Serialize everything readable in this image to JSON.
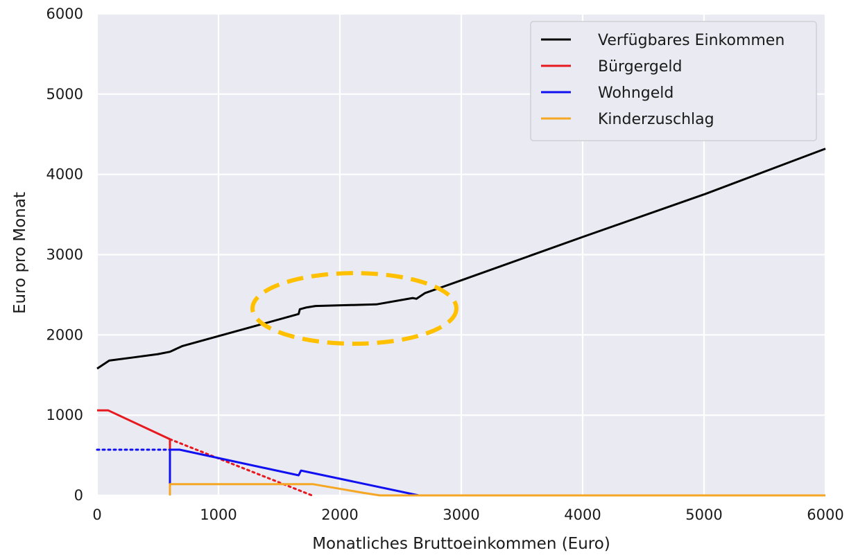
{
  "chart_data": {
    "type": "line",
    "xlabel": "Monatliches Bruttoeinkommen (Euro)",
    "ylabel": "Euro pro Monat",
    "xlim": [
      0,
      6000
    ],
    "ylim": [
      0,
      6000
    ],
    "x_ticks": [
      "0",
      "1000",
      "2000",
      "3000",
      "4000",
      "5000",
      "6000"
    ],
    "y_ticks": [
      "0",
      "1000",
      "2000",
      "3000",
      "4000",
      "5000",
      "6000"
    ],
    "grid": true,
    "legend_position": "top-right",
    "background_color": "#eaeaf2",
    "series": [
      {
        "name": "Verfügbares Einkommen",
        "color": "#000000",
        "style": "solid",
        "points": [
          [
            0,
            1580
          ],
          [
            100,
            1680
          ],
          [
            300,
            1720
          ],
          [
            500,
            1760
          ],
          [
            600,
            1790
          ],
          [
            700,
            1860
          ],
          [
            1660,
            2260
          ],
          [
            1670,
            2320
          ],
          [
            1720,
            2340
          ],
          [
            1800,
            2360
          ],
          [
            2300,
            2380
          ],
          [
            2600,
            2460
          ],
          [
            2630,
            2450
          ],
          [
            2700,
            2520
          ],
          [
            3000,
            2680
          ],
          [
            4000,
            3220
          ],
          [
            5000,
            3750
          ],
          [
            6000,
            4320
          ]
        ]
      },
      {
        "name": "Bürgergeld",
        "color": "#e8191e",
        "style": "solid",
        "points": [
          [
            0,
            1060
          ],
          [
            90,
            1060
          ],
          [
            600,
            700
          ],
          [
            600,
            0
          ]
        ]
      },
      {
        "name": "Bürgergeld",
        "color": "#e8191e",
        "style": "dotted",
        "points": [
          [
            600,
            700
          ],
          [
            1770,
            0
          ]
        ]
      },
      {
        "name": "Wohngeld",
        "color": "#1010f0",
        "style": "solid",
        "points": [
          [
            600,
            0
          ],
          [
            600,
            570
          ],
          [
            680,
            570
          ],
          [
            1660,
            250
          ],
          [
            1680,
            310
          ],
          [
            2650,
            0
          ]
        ]
      },
      {
        "name": "Wohngeld",
        "color": "#1010f0",
        "style": "dotted",
        "points": [
          [
            0,
            570
          ],
          [
            600,
            570
          ]
        ]
      },
      {
        "name": "Kinderzuschlag",
        "color": "#f5a623",
        "style": "solid",
        "points": [
          [
            600,
            0
          ],
          [
            600,
            140
          ],
          [
            1780,
            140
          ],
          [
            2200,
            30
          ],
          [
            2330,
            0
          ],
          [
            6000,
            0
          ]
        ]
      }
    ],
    "annotations": [
      {
        "type": "ellipse",
        "color": "#ffc000",
        "style": "dashed",
        "cx": 2120,
        "cy": 2330,
        "rx": 840,
        "ry": 440
      }
    ]
  }
}
